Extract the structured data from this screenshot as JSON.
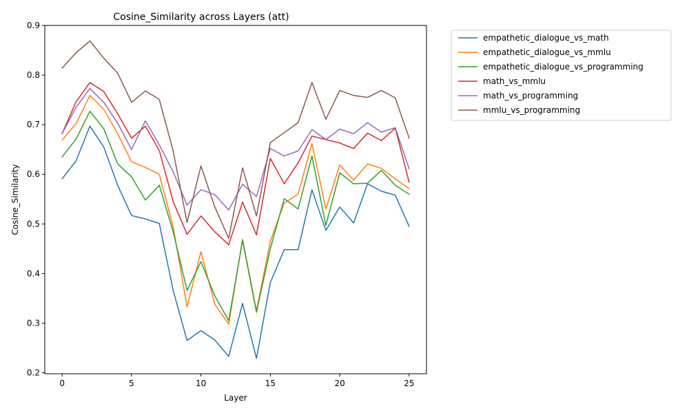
{
  "chart_data": {
    "type": "line",
    "title": "Cosine_Similarity across Layers (att)",
    "xlabel": "Layer",
    "ylabel": "Cosine_Similarity",
    "xlim": [
      -1.25,
      26.25
    ],
    "ylim": [
      0.198,
      0.9
    ],
    "xticks": [
      0,
      5,
      10,
      15,
      20,
      25
    ],
    "xtick_labels": [
      "0",
      "5",
      "10",
      "15",
      "20",
      "25"
    ],
    "yticks": [
      0.2,
      0.3,
      0.4,
      0.5,
      0.6,
      0.7,
      0.8,
      0.9
    ],
    "ytick_labels": [
      "0.2",
      "0.3",
      "0.4",
      "0.5",
      "0.6",
      "0.7",
      "0.8",
      "0.9"
    ],
    "grid": false,
    "legend_position": "outside-upper-right",
    "x": [
      0,
      1,
      2,
      3,
      4,
      5,
      6,
      7,
      8,
      9,
      10,
      11,
      12,
      13,
      14,
      15,
      16,
      17,
      18,
      19,
      20,
      21,
      22,
      23,
      24,
      25
    ],
    "series": [
      {
        "name": "empathetic_dialogue_vs_math",
        "color": "#1f77b4",
        "values": [
          0.591,
          0.627,
          0.697,
          0.655,
          0.578,
          0.517,
          0.51,
          0.501,
          0.366,
          0.265,
          0.285,
          0.266,
          0.233,
          0.34,
          0.229,
          0.382,
          0.448,
          0.448,
          0.569,
          0.487,
          0.534,
          0.502,
          0.581,
          0.566,
          0.558,
          0.495
        ]
      },
      {
        "name": "empathetic_dialogue_vs_mmlu",
        "color": "#ff7f0e",
        "values": [
          0.669,
          0.702,
          0.759,
          0.731,
          0.682,
          0.625,
          0.614,
          0.6,
          0.494,
          0.333,
          0.444,
          0.338,
          0.298,
          0.469,
          0.325,
          0.465,
          0.542,
          0.56,
          0.662,
          0.53,
          0.619,
          0.588,
          0.621,
          0.612,
          0.591,
          0.571
        ]
      },
      {
        "name": "empathetic_dialogue_vs_programming",
        "color": "#2ca02c",
        "values": [
          0.635,
          0.671,
          0.727,
          0.692,
          0.621,
          0.595,
          0.548,
          0.578,
          0.484,
          0.366,
          0.424,
          0.355,
          0.305,
          0.467,
          0.322,
          0.45,
          0.551,
          0.53,
          0.637,
          0.497,
          0.603,
          0.581,
          0.582,
          0.608,
          0.578,
          0.56
        ]
      },
      {
        "name": "math_vs_mmlu",
        "color": "#d62728",
        "values": [
          0.682,
          0.746,
          0.785,
          0.767,
          0.722,
          0.673,
          0.697,
          0.648,
          0.545,
          0.479,
          0.516,
          0.484,
          0.458,
          0.544,
          0.478,
          0.632,
          0.581,
          0.623,
          0.677,
          0.67,
          0.663,
          0.652,
          0.683,
          0.668,
          0.693,
          0.584
        ]
      },
      {
        "name": "math_vs_programming",
        "color": "#9467bd",
        "values": [
          0.682,
          0.735,
          0.773,
          0.745,
          0.703,
          0.65,
          0.708,
          0.659,
          0.605,
          0.538,
          0.569,
          0.559,
          0.528,
          0.58,
          0.555,
          0.652,
          0.637,
          0.647,
          0.69,
          0.67,
          0.691,
          0.682,
          0.704,
          0.685,
          0.694,
          0.611
        ]
      },
      {
        "name": "mmlu_vs_programming",
        "color": "#8c564b",
        "values": [
          0.814,
          0.845,
          0.869,
          0.834,
          0.804,
          0.745,
          0.768,
          0.751,
          0.647,
          0.503,
          0.617,
          0.534,
          0.471,
          0.613,
          0.516,
          0.664,
          0.684,
          0.704,
          0.785,
          0.711,
          0.769,
          0.759,
          0.755,
          0.769,
          0.754,
          0.673
        ]
      }
    ]
  }
}
